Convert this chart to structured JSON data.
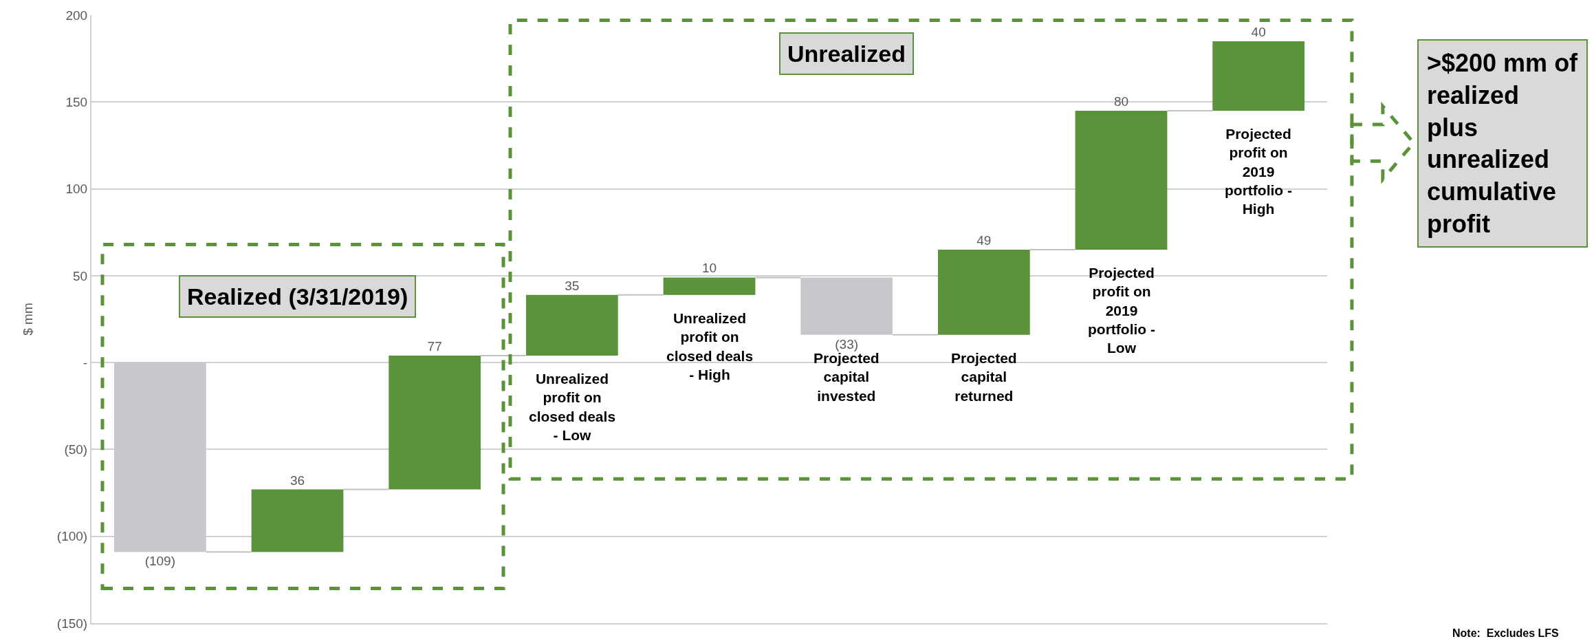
{
  "chart_data": {
    "type": "bar",
    "ylabel": "$ mm",
    "categories": [
      null,
      null,
      null,
      "Unrealized profit on closed deals - Low",
      "Unrealized profit on closed deals - High",
      "Projected capital invested",
      "Projected capital returned",
      "Projected profit on 2019 portfolio - Low",
      "Projected profit on 2019 portfolio - High"
    ],
    "values": [
      -109,
      36,
      77,
      35,
      10,
      -33,
      49,
      80,
      40
    ],
    "base": [
      0,
      -109,
      -73,
      4,
      39,
      49,
      16,
      65,
      145
    ],
    "colors": [
      "#c8c8cc",
      "#5a9339",
      "#5a9339",
      "#5a9339",
      "#5a9339",
      "#c8c8cc",
      "#5a9339",
      "#5a9339",
      "#5a9339"
    ],
    "value_labels": [
      "(109)",
      "36",
      "77",
      "35",
      "10",
      "(33)",
      "49",
      "80",
      "40"
    ],
    "ylim": [
      -150,
      200
    ],
    "yticks": [
      {
        "value": -150,
        "label": "(150)"
      },
      {
        "value": -100,
        "label": "(100)"
      },
      {
        "value": -50,
        "label": "(50)"
      },
      {
        "value": 0,
        "label": "-"
      },
      50,
      100,
      150,
      200
    ],
    "grid": "y",
    "tick_labels": "y",
    "annotations": [
      "Realized (3/31/2019)",
      "Unrealized",
      ">$200 mm of realized plus unrealized cumulative profit",
      "Note:  Excludes LFS"
    ]
  }
}
